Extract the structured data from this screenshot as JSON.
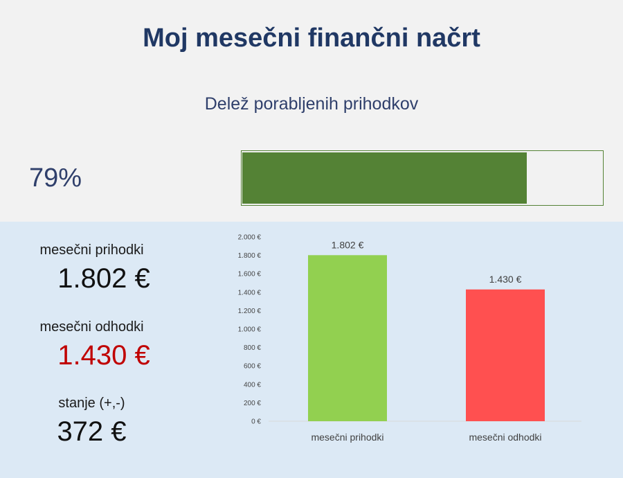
{
  "header": {
    "title": "Moj mesečni finančni načrt",
    "subtitle": "Delež porabljenih prihodkov"
  },
  "progress": {
    "label": "79%",
    "fraction": 0.79,
    "fill_color": "#548235"
  },
  "summary": {
    "income_label": "mesečni prihodki",
    "income_value": "1.802 €",
    "expense_label": "mesečni odhodki",
    "expense_value": "1.430 €",
    "expense_color": "#c00000",
    "balance_label": "stanje (+,-)",
    "balance_value": "372 €"
  },
  "chart_data": {
    "type": "bar",
    "categories": [
      "mesečni prihodki",
      "mesečni odhodki"
    ],
    "values": [
      1802,
      1430
    ],
    "data_labels": [
      "1.802 €",
      "1.430 €"
    ],
    "colors": [
      "#92d050",
      "#ff5050"
    ],
    "ylim": [
      0,
      2000
    ],
    "yticks": [
      {
        "value": 0,
        "label": "0 €"
      },
      {
        "value": 200,
        "label": "200 €"
      },
      {
        "value": 400,
        "label": "400 €"
      },
      {
        "value": 600,
        "label": "600 €"
      },
      {
        "value": 800,
        "label": "800 €"
      },
      {
        "value": 1000,
        "label": "1.000 €"
      },
      {
        "value": 1200,
        "label": "1.200 €"
      },
      {
        "value": 1400,
        "label": "1.400 €"
      },
      {
        "value": 1600,
        "label": "1.600 €"
      },
      {
        "value": 1800,
        "label": "1.800 €"
      },
      {
        "value": 2000,
        "label": "2.000 €"
      }
    ],
    "grid": false,
    "legend": "none"
  }
}
